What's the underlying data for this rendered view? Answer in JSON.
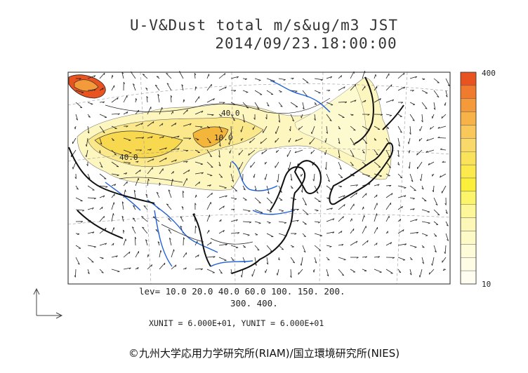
{
  "title_line1": "U-V&Dust total m/s&ug/m3 JST",
  "title_line2": "2014/09/23.18:00:00",
  "colorbar": {
    "max_label": "400",
    "min_label": "10",
    "colors": [
      "#e8531f",
      "#f07a2e",
      "#f59a3b",
      "#f7b24a",
      "#f9c75a",
      "#f9d96a",
      "#fae35a",
      "#fbe94e",
      "#fbef3c",
      "#fcf56a",
      "#fdf79a",
      "#fdf8b8",
      "#fefac8",
      "#fefbd8",
      "#fffce6",
      "#fffdf0"
    ]
  },
  "map_labels": [
    "40.0",
    "40.0",
    "10.0"
  ],
  "levels": {
    "line1": "lev= 10.0 20.0 40.0 60.0 100. 150. 200.",
    "line2": "300. 400."
  },
  "units": "XUNIT = 6.000E+01, YUNIT = 6.000E+01",
  "credit": "©九州大学応用力学研究所(RIAM)/国立環境研究所(NIES)"
}
